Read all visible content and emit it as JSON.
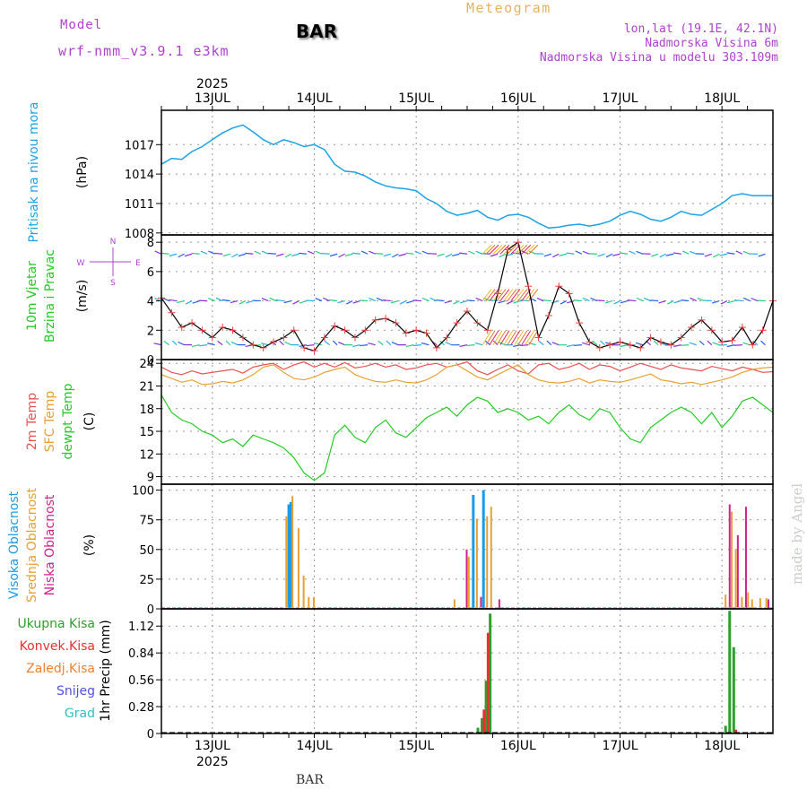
{
  "header": {
    "model_label": "Model",
    "model_name": "wrf-nmm_v3.9.1 e3km",
    "station": "BAR",
    "title": "Meteogram",
    "lonlat": "lon,lat (19.1E, 42.1N)",
    "elevation": "Nadmorska Visina 6m",
    "model_elevation": "Nadmorska Visina u modelu 303.109m",
    "footer_station": "BAR",
    "watermark": "made by Angel",
    "year": "2025"
  },
  "colors": {
    "pressure": "#1aa3e8",
    "wind_speed": "#e84040",
    "temp2m": "#e85050",
    "sfc_temp": "#e8a030",
    "dewpt": "#22cc22",
    "cloud_high": "#1a9be8",
    "cloud_mid": "#e8a030",
    "cloud_low": "#d0208a",
    "precip_total": "#2e9e2e",
    "precip_conv": "#e83030",
    "precip_frozen": "#f08030",
    "snow": "#5050e8",
    "hail": "#30c0c0",
    "purple_text": "#b040d0",
    "gold_text": "#e8b060",
    "frame": "#000000",
    "grid": "#999999"
  },
  "chart_data": [
    {
      "type": "line",
      "panel": "pressure",
      "ylabel": [
        "Pritisak na nivou mora",
        "(hPa)"
      ],
      "yticks": [
        1008,
        1011,
        1014,
        1017
      ],
      "ylim": [
        1007.8,
        1020.5
      ],
      "xlim": [
        12.5,
        18.5
      ],
      "xticks": [
        "13JUL",
        "14JUL",
        "15JUL",
        "16JUL",
        "17JUL",
        "18JUL"
      ],
      "x": [
        12.5,
        12.6,
        12.7,
        12.8,
        12.9,
        13.0,
        13.1,
        13.2,
        13.3,
        13.4,
        13.5,
        13.6,
        13.7,
        13.8,
        13.9,
        14.0,
        14.1,
        14.2,
        14.3,
        14.4,
        14.5,
        14.6,
        14.7,
        14.8,
        14.9,
        15.0,
        15.1,
        15.2,
        15.3,
        15.4,
        15.5,
        15.6,
        15.7,
        15.8,
        15.9,
        16.0,
        16.1,
        16.2,
        16.3,
        16.4,
        16.5,
        16.6,
        16.7,
        16.8,
        16.9,
        17.0,
        17.1,
        17.2,
        17.3,
        17.4,
        17.5,
        17.6,
        17.7,
        17.8,
        17.9,
        18.0,
        18.1,
        18.2,
        18.3,
        18.4,
        18.5
      ],
      "values": [
        1015.0,
        1015.6,
        1015.5,
        1016.3,
        1016.8,
        1017.5,
        1018.2,
        1018.7,
        1019.0,
        1018.3,
        1017.5,
        1017.0,
        1017.5,
        1017.2,
        1016.8,
        1017.0,
        1016.5,
        1015.0,
        1014.3,
        1014.2,
        1013.8,
        1013.2,
        1012.8,
        1012.6,
        1012.5,
        1012.3,
        1011.5,
        1011.0,
        1010.2,
        1009.8,
        1010.0,
        1010.3,
        1009.6,
        1009.3,
        1009.8,
        1009.9,
        1009.6,
        1009.0,
        1008.5,
        1008.6,
        1008.8,
        1008.9,
        1008.7,
        1008.9,
        1009.2,
        1009.8,
        1010.2,
        1009.9,
        1009.4,
        1009.2,
        1009.6,
        1010.2,
        1009.9,
        1009.8,
        1010.4,
        1011.0,
        1011.8,
        1012.0,
        1011.8,
        1011.8,
        1011.8
      ]
    },
    {
      "type": "line",
      "panel": "wind",
      "ylabel": [
        "10m Vjetar",
        "Brzina i Pravac",
        "(m/s)"
      ],
      "compass": [
        "N",
        "S",
        "W",
        "E"
      ],
      "yticks": [
        0,
        2,
        4,
        6,
        8
      ],
      "ylim": [
        0,
        8.5
      ],
      "x": [
        12.5,
        12.6,
        12.7,
        12.8,
        12.9,
        13.0,
        13.1,
        13.2,
        13.3,
        13.4,
        13.5,
        13.6,
        13.7,
        13.8,
        13.9,
        14.0,
        14.1,
        14.2,
        14.3,
        14.4,
        14.5,
        14.6,
        14.7,
        14.8,
        14.9,
        15.0,
        15.1,
        15.2,
        15.3,
        15.4,
        15.5,
        15.6,
        15.7,
        15.8,
        15.9,
        16.0,
        16.1,
        16.2,
        16.3,
        16.4,
        16.5,
        16.6,
        16.7,
        16.8,
        16.9,
        17.0,
        17.1,
        17.2,
        17.3,
        17.4,
        17.5,
        17.6,
        17.7,
        17.8,
        17.9,
        18.0,
        18.1,
        18.2,
        18.3,
        18.4,
        18.5
      ],
      "values": [
        4.2,
        3.2,
        2.2,
        2.5,
        2.0,
        1.5,
        2.2,
        2.0,
        1.5,
        1.0,
        0.8,
        1.2,
        1.5,
        2.0,
        0.8,
        0.6,
        1.5,
        2.3,
        2.0,
        1.5,
        2.0,
        2.7,
        2.8,
        2.5,
        1.8,
        2.0,
        1.8,
        0.8,
        1.5,
        2.5,
        3.3,
        2.5,
        2.0,
        4.5,
        7.5,
        8.0,
        5.0,
        1.5,
        3.0,
        5.0,
        4.5,
        2.5,
        1.2,
        0.8,
        1.0,
        1.2,
        1.0,
        0.8,
        1.5,
        1.2,
        1.0,
        1.5,
        2.2,
        2.7,
        2.0,
        1.2,
        1.3,
        2.2,
        1.0,
        2.0,
        4.0
      ],
      "arrow_rows": [
        1,
        4,
        7.2
      ]
    },
    {
      "type": "line",
      "panel": "temperature",
      "ylabel": [
        "2m Temp",
        "SFC Temp",
        "dewpt Temp",
        "(C)"
      ],
      "yticks": [
        9,
        12,
        15,
        18,
        21,
        24
      ],
      "ylim": [
        8,
        24.5
      ],
      "x": [
        12.5,
        12.6,
        12.7,
        12.8,
        12.9,
        13.0,
        13.1,
        13.2,
        13.3,
        13.4,
        13.5,
        13.6,
        13.7,
        13.8,
        13.9,
        14.0,
        14.1,
        14.2,
        14.3,
        14.4,
        14.5,
        14.6,
        14.7,
        14.8,
        14.9,
        15.0,
        15.1,
        15.2,
        15.3,
        15.4,
        15.5,
        15.6,
        15.7,
        15.8,
        15.9,
        16.0,
        16.1,
        16.2,
        16.3,
        16.4,
        16.5,
        16.6,
        16.7,
        16.8,
        16.9,
        17.0,
        17.1,
        17.2,
        17.3,
        17.4,
        17.5,
        17.6,
        17.7,
        17.8,
        17.9,
        18.0,
        18.1,
        18.2,
        18.3,
        18.4,
        18.5
      ],
      "series": [
        {
          "name": "2m Temp",
          "values": [
            23.5,
            22.8,
            22.5,
            23.0,
            22.6,
            22.8,
            23.0,
            23.2,
            22.7,
            23.5,
            23.8,
            24.0,
            23.2,
            23.8,
            24.2,
            23.5,
            24.0,
            23.5,
            24.1,
            23.4,
            23.6,
            24.0,
            23.5,
            23.8,
            23.2,
            23.4,
            23.8,
            24.0,
            23.5,
            23.8,
            24.2,
            23.0,
            22.5,
            23.2,
            23.8,
            23.0,
            22.6,
            23.8,
            24.0,
            23.2,
            23.5,
            24.0,
            23.2,
            23.8,
            23.6,
            23.0,
            23.5,
            24.0,
            23.6,
            23.2,
            23.8,
            23.4,
            23.2,
            23.0,
            23.6,
            23.3,
            23.0,
            23.5,
            23.2,
            22.8,
            22.9
          ]
        },
        {
          "name": "SFC Temp",
          "values": [
            22.5,
            22.0,
            21.5,
            21.8,
            21.2,
            21.3,
            21.6,
            21.4,
            21.8,
            22.5,
            23.5,
            23.8,
            22.8,
            22.0,
            21.8,
            22.2,
            22.8,
            23.2,
            23.5,
            22.5,
            22.0,
            21.6,
            21.5,
            21.8,
            21.5,
            21.4,
            21.8,
            22.5,
            23.5,
            23.8,
            23.0,
            22.2,
            21.8,
            22.5,
            23.2,
            23.8,
            22.5,
            21.8,
            21.5,
            21.4,
            21.6,
            22.0,
            21.4,
            21.8,
            21.6,
            21.5,
            21.8,
            22.2,
            22.6,
            21.8,
            21.6,
            21.3,
            21.5,
            21.2,
            21.5,
            21.8,
            22.2,
            22.8,
            23.2,
            23.4,
            23.5
          ]
        },
        {
          "name": "dewpt Temp",
          "values": [
            19.8,
            17.5,
            16.5,
            16.0,
            15.0,
            14.5,
            13.5,
            14.0,
            13.0,
            14.5,
            14.0,
            13.5,
            12.8,
            11.5,
            9.5,
            8.5,
            9.5,
            14.5,
            15.8,
            14.2,
            13.5,
            15.5,
            16.5,
            14.8,
            14.2,
            15.5,
            16.8,
            17.5,
            18.2,
            17.0,
            18.5,
            19.5,
            19.0,
            17.5,
            18.0,
            17.5,
            16.5,
            17.0,
            16.0,
            17.5,
            18.5,
            17.2,
            16.5,
            18.0,
            17.5,
            15.5,
            14.0,
            13.5,
            15.5,
            16.5,
            17.5,
            18.2,
            17.5,
            16.0,
            17.5,
            15.5,
            17.0,
            19.0,
            19.5,
            18.5,
            17.5
          ]
        }
      ]
    },
    {
      "type": "bar",
      "panel": "cloud",
      "ylabel": [
        "Visoka Oblacnost",
        "Srednja Oblacnost",
        "Niska Oblacnost",
        "(%)"
      ],
      "yticks": [
        0,
        25,
        50,
        75,
        100
      ],
      "ylim": [
        0,
        105
      ],
      "series": [
        {
          "name": "Visoka Oblacnost",
          "x": [
            13.75,
            15.56,
            15.66,
            13.77
          ],
          "values": [
            88,
            96,
            100,
            90
          ]
        },
        {
          "name": "Srednja Oblacnost",
          "x": [
            13.73,
            13.79,
            13.85,
            13.9,
            13.95,
            14.0,
            15.38,
            15.52,
            15.6,
            15.7,
            15.74,
            18.04,
            18.1,
            18.14,
            18.2,
            18.26,
            18.3,
            18.38,
            18.44
          ],
          "values": [
            78,
            95,
            68,
            28,
            10,
            10,
            8,
            44,
            76,
            78,
            86,
            12,
            82,
            50,
            10,
            14,
            8,
            9,
            9
          ]
        },
        {
          "name": "Niska Oblacnost",
          "x": [
            15.5,
            15.64,
            15.82,
            18.08,
            18.16,
            18.24,
            18.46
          ],
          "values": [
            50,
            10,
            8,
            88,
            62,
            86,
            8
          ]
        }
      ]
    },
    {
      "type": "bar",
      "panel": "precip",
      "ylabel": [
        "Ukupna Kisa",
        "Konvek.Kisa",
        "Zaledj.Kisa",
        "Snijeg",
        "Grad",
        "1hr Precip (mm)"
      ],
      "yticks": [
        0,
        0.28,
        0.56,
        0.84,
        1.12
      ],
      "ylim": [
        0,
        1.3
      ],
      "series": [
        {
          "name": "Ukupna Kisa",
          "x": [
            15.61,
            15.65,
            15.69,
            15.73,
            18.04,
            18.08,
            18.12
          ],
          "values": [
            0.06,
            0.16,
            0.55,
            1.25,
            0.08,
            1.28,
            0.9
          ]
        },
        {
          "name": "Konvek.Kisa",
          "x": [
            15.67,
            15.71,
            18.14
          ],
          "values": [
            0.25,
            1.05,
            0.04
          ]
        }
      ]
    }
  ]
}
